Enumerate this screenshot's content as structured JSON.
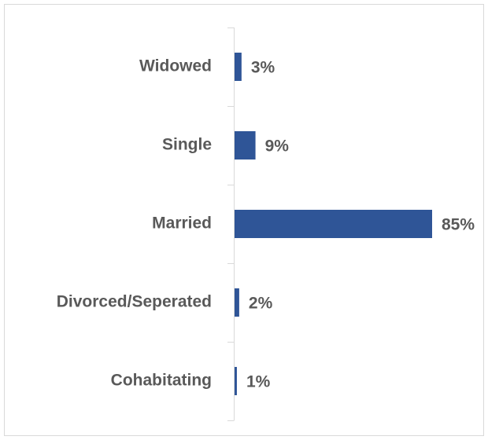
{
  "chart_data": {
    "type": "bar",
    "orientation": "horizontal",
    "categories": [
      "Widowed",
      "Single",
      "Married",
      "Divorced/Seperated",
      "Cohabitating"
    ],
    "values": [
      3,
      9,
      85,
      2,
      1
    ],
    "value_labels": [
      "3%",
      "9%",
      "85%",
      "2%",
      "1%"
    ],
    "color": "#2f5597"
  }
}
